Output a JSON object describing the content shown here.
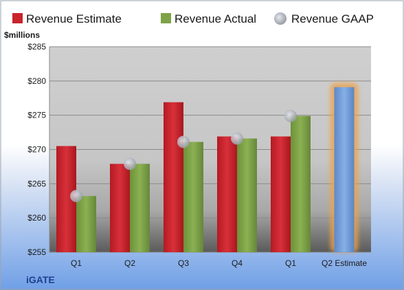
{
  "chart_data": {
    "type": "bar",
    "company": "iGATE",
    "ylabel": "$millions",
    "ylim": [
      255,
      285
    ],
    "yticks": [
      255,
      260,
      265,
      270,
      275,
      280,
      285
    ],
    "ytick_labels": [
      "$255",
      "$260",
      "$265",
      "$270",
      "$275",
      "$280",
      "$285"
    ],
    "categories": [
      "Q1",
      "Q2",
      "Q3",
      "Q4",
      "Q1",
      "Q2 Estimate"
    ],
    "grid": true,
    "legend_position": "top",
    "series": [
      {
        "name": "Revenue Estimate",
        "kind": "bar",
        "color": "#c9242b",
        "values": [
          270.5,
          267.9,
          276.9,
          271.9,
          271.9,
          null
        ]
      },
      {
        "name": "Revenue Actual",
        "kind": "bar",
        "color": "#7ea246",
        "values": [
          263.2,
          267.9,
          271.1,
          271.6,
          274.9,
          null
        ]
      },
      {
        "name": "Revenue GAAP",
        "kind": "marker",
        "color": "#b8bcc8",
        "values": [
          263.2,
          267.9,
          271.1,
          271.6,
          274.9,
          null
        ]
      },
      {
        "name": "",
        "kind": "highlight-bar",
        "color": "#6a97d4",
        "glow": "#f0a044",
        "values": [
          null,
          null,
          null,
          null,
          null,
          279.1
        ]
      }
    ]
  }
}
